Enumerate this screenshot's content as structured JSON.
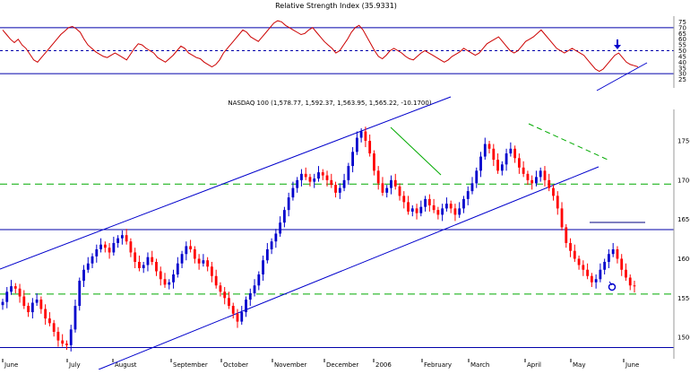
{
  "chart_data": [
    {
      "type": "line",
      "title": "Relative Strength Index (35.9331)",
      "ylim": [
        20,
        80
      ],
      "yticks": [
        25,
        30,
        35,
        40,
        45,
        50,
        55,
        60,
        65,
        70,
        75
      ],
      "reference_lines": {
        "upper": 70,
        "mid": 50,
        "lower": 30
      },
      "series": [
        {
          "values": [
            68,
            64,
            60,
            57,
            60,
            55,
            52,
            47,
            42,
            40,
            44,
            48,
            52,
            56,
            60,
            64,
            67,
            70,
            71,
            69,
            66,
            60,
            55,
            52,
            49,
            47,
            45,
            44,
            46,
            48,
            46,
            44,
            42,
            47,
            52,
            56,
            55,
            52,
            50,
            48,
            44,
            42,
            40,
            43,
            46,
            50,
            54,
            52,
            48,
            46,
            44,
            43,
            40,
            38,
            36,
            38,
            42,
            48,
            52,
            56,
            60,
            64,
            68,
            66,
            62,
            60,
            58,
            62,
            66,
            70,
            74,
            76,
            75,
            72,
            70,
            68,
            66,
            64,
            65,
            68,
            70,
            66,
            62,
            58,
            55,
            52,
            48,
            50,
            55,
            60,
            66,
            70,
            72,
            68,
            62,
            56,
            50,
            45,
            43,
            46,
            50,
            52,
            50,
            48,
            45,
            43,
            42,
            45,
            48,
            50,
            48,
            46,
            44,
            42,
            40,
            42,
            45,
            47,
            49,
            52,
            50,
            48,
            46,
            48,
            52,
            56,
            58,
            60,
            62,
            58,
            54,
            50,
            48,
            50,
            54,
            58,
            60,
            62,
            65,
            68,
            64,
            60,
            56,
            52,
            50,
            48,
            50,
            52,
            50,
            48,
            46,
            42,
            38,
            34,
            32,
            34,
            38,
            42,
            46,
            48,
            44,
            40,
            38,
            37,
            36
          ]
        }
      ]
    },
    {
      "type": "candlestick",
      "title": "NASDAQ 100 (1,578.77, 1,592.37, 1,563.95, 1,565.22, -10.1700)",
      "ylim": [
        1475,
        1790
      ],
      "yticks": [
        1500,
        1550,
        1600,
        1650,
        1700,
        1750
      ],
      "x_labels": [
        "June",
        "July",
        "August",
        "September",
        "October",
        "November",
        "December",
        "2006",
        "February",
        "March",
        "April",
        "May",
        "June"
      ],
      "closes": [
        1545,
        1558,
        1565,
        1562,
        1552,
        1540,
        1532,
        1544,
        1548,
        1536,
        1524,
        1518,
        1507,
        1496,
        1492,
        1490,
        1510,
        1540,
        1572,
        1586,
        1594,
        1603,
        1612,
        1618,
        1614,
        1608,
        1620,
        1626,
        1630,
        1622,
        1608,
        1596,
        1588,
        1592,
        1602,
        1596,
        1584,
        1574,
        1567,
        1570,
        1580,
        1594,
        1606,
        1616,
        1612,
        1600,
        1594,
        1598,
        1590,
        1578,
        1566,
        1558,
        1550,
        1540,
        1530,
        1520,
        1532,
        1548,
        1556,
        1566,
        1580,
        1598,
        1612,
        1622,
        1632,
        1646,
        1662,
        1678,
        1690,
        1700,
        1708,
        1704,
        1698,
        1702,
        1710,
        1706,
        1700,
        1694,
        1684,
        1690,
        1700,
        1718,
        1736,
        1754,
        1762,
        1750,
        1734,
        1712,
        1696,
        1684,
        1690,
        1700,
        1692,
        1680,
        1672,
        1660,
        1664,
        1658,
        1666,
        1676,
        1668,
        1662,
        1656,
        1664,
        1670,
        1664,
        1656,
        1664,
        1676,
        1686,
        1696,
        1712,
        1730,
        1746,
        1740,
        1726,
        1712,
        1720,
        1734,
        1740,
        1728,
        1716,
        1708,
        1700,
        1696,
        1704,
        1712,
        1700,
        1690,
        1680,
        1664,
        1640,
        1620,
        1610,
        1600,
        1592,
        1586,
        1578,
        1570,
        1574,
        1586,
        1596,
        1606,
        1612,
        1600,
        1586,
        1576,
        1566,
        1565
      ],
      "reference_lines": [
        1487,
        1555,
        1637,
        1695
      ],
      "annotation": "down-arrow"
    }
  ],
  "colors": {
    "up": "#0000cc",
    "down": "#ff0000",
    "channel": "#0000cc",
    "support_dashed": "#00aa00",
    "rsi_line": "#cc0000",
    "grid": "#0000aa"
  }
}
